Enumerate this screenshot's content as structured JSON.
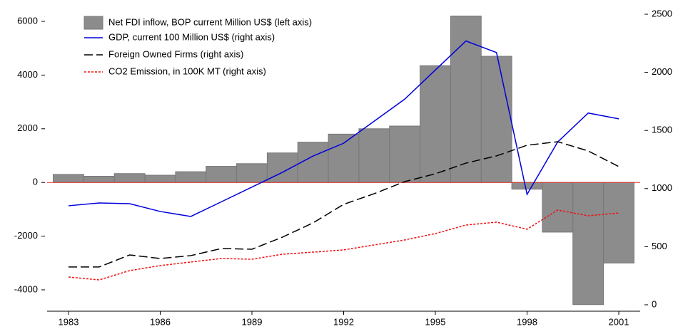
{
  "chart_data": {
    "type": "combo",
    "x": [
      1983,
      1984,
      1985,
      1986,
      1987,
      1988,
      1989,
      1990,
      1991,
      1992,
      1993,
      1994,
      1995,
      1996,
      1997,
      1998,
      1999,
      2000,
      2001
    ],
    "xlim": [
      1982.3,
      2001.7
    ],
    "xticks": [
      1983,
      1986,
      1989,
      1992,
      1995,
      1998,
      2001
    ],
    "ylim": [
      -4600,
      6300
    ],
    "yticks": [
      -4000,
      -2000,
      0,
      2000,
      4000,
      6000
    ],
    "y2lim": [
      -10,
      2508
    ],
    "y2ticks": [
      0,
      500,
      1000,
      1500,
      2000,
      2500
    ],
    "zero_line_color": "#e03030",
    "legend": "upper left",
    "series": [
      {
        "name": "Net FDI inflow, BOP current Million US$ (left axis)",
        "type": "bar",
        "color": "#8c8c8c",
        "values": [
          300,
          230,
          330,
          270,
          400,
          600,
          700,
          1100,
          1500,
          1800,
          2000,
          2100,
          4350,
          6200,
          4700,
          -250,
          -1850,
          -4550,
          -3000
        ]
      },
      {
        "name": "GDP, current 100 Million US$ (right axis)",
        "type": "line",
        "axis": "y2",
        "color": "#0000dd",
        "dash": "solid",
        "values": [
          852,
          876,
          870,
          803,
          760,
          886,
          1013,
          1140,
          1280,
          1390,
          1580,
          1770,
          2020,
          2270,
          2170,
          950,
          1400,
          1650,
          1600
        ]
      },
      {
        "name": "Foreign Owned Firms (right axis)",
        "type": "line",
        "axis": "y2",
        "color": "#000000",
        "dash": "dashed",
        "values": [
          325,
          325,
          429,
          398,
          423,
          484,
          478,
          582,
          705,
          864,
          956,
          1060,
          1127,
          1219,
          1281,
          1373,
          1403,
          1324,
          1189
        ]
      },
      {
        "name": "CO2 Emission, in 100K MT (right axis)",
        "type": "line",
        "axis": "y2",
        "color": "#ee1111",
        "dash": "dotted",
        "values": [
          239,
          214,
          294,
          337,
          368,
          398,
          392,
          435,
          453,
          472,
          515,
          558,
          613,
          686,
          711,
          650,
          815,
          766,
          790
        ]
      }
    ]
  }
}
